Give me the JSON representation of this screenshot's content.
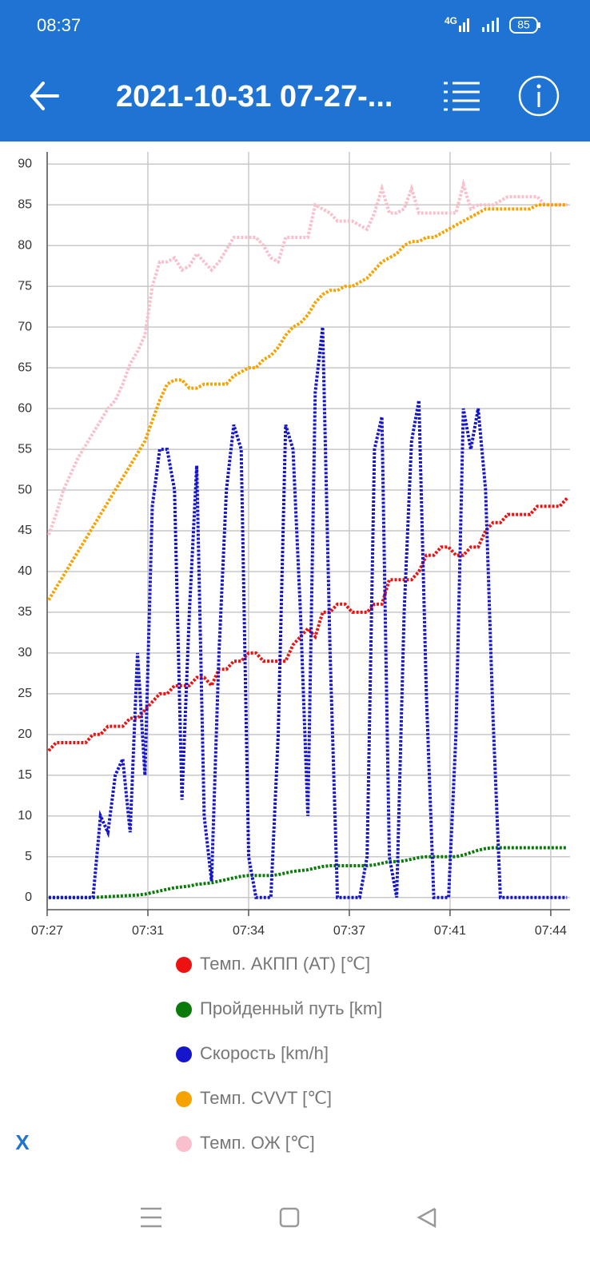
{
  "status_bar": {
    "time": "08:37",
    "network": "4G",
    "battery": "85"
  },
  "app_bar": {
    "title": "2021-10-31 07-27-..."
  },
  "close_button": "X",
  "chart_data": {
    "type": "line",
    "x": [
      447.75,
      448,
      448.25,
      448.5,
      448.75,
      449,
      449.25,
      449.5,
      449.75,
      450,
      450.25,
      450.5,
      450.75,
      451,
      451.25,
      451.5,
      451.75,
      452,
      452.25,
      452.5,
      452.75,
      453,
      453.25,
      453.5,
      453.75,
      454,
      454.25,
      454.5,
      454.75,
      455,
      455.25,
      455.5,
      455.75,
      456,
      456.25,
      456.5,
      456.75,
      457,
      457.25,
      457.5,
      457.75,
      458,
      458.25,
      458.5,
      458.75,
      459,
      459.25,
      459.5,
      459.75,
      460,
      460.25,
      460.5,
      460.75,
      461,
      461.25,
      461.5,
      461.75,
      462,
      462.25,
      462.5,
      462.75,
      463,
      463.25,
      463.5,
      463.75,
      464,
      464.25,
      464.5,
      464.75,
      465,
      465.25
    ],
    "xlim": [
      447.7,
      465.35
    ],
    "xticks": [
      {
        "value": 447.7,
        "label": "07:27"
      },
      {
        "value": 451.1,
        "label": "07:31"
      },
      {
        "value": 454.5,
        "label": "07:34"
      },
      {
        "value": 457.9,
        "label": "07:37"
      },
      {
        "value": 461.3,
        "label": "07:41"
      },
      {
        "value": 464.7,
        "label": "07:44"
      }
    ],
    "ylim": [
      -1.5,
      91.5
    ],
    "yticks": [
      0,
      5,
      10,
      15,
      20,
      25,
      30,
      35,
      40,
      45,
      50,
      55,
      60,
      65,
      70,
      75,
      80,
      85,
      90
    ],
    "grid": true,
    "series": [
      {
        "name": "Темп. АКПП (AT) [℃]",
        "color": "#ee1111",
        "values": [
          18,
          19,
          19,
          19,
          19,
          19,
          20,
          20,
          21,
          21,
          21,
          22,
          22,
          23,
          24,
          25,
          25,
          26,
          26,
          26,
          27,
          27,
          26,
          28,
          28,
          29,
          29,
          30,
          30,
          29,
          29,
          29,
          29,
          31,
          32,
          33,
          32,
          35,
          35,
          36,
          36,
          35,
          35,
          35,
          36,
          36,
          39,
          39,
          39,
          39,
          40,
          42,
          42,
          43,
          43,
          42,
          42,
          43,
          43,
          45,
          46,
          46,
          47,
          47,
          47,
          47,
          48,
          48,
          48,
          48,
          49
        ]
      },
      {
        "name": "Пройденный путь [km]",
        "color": "#0a7a0a",
        "values": [
          0,
          0,
          0,
          0,
          0,
          0,
          0,
          0.05,
          0.1,
          0.15,
          0.2,
          0.25,
          0.3,
          0.4,
          0.6,
          0.8,
          1.0,
          1.2,
          1.3,
          1.4,
          1.6,
          1.7,
          1.8,
          2.0,
          2.2,
          2.4,
          2.6,
          2.7,
          2.7,
          2.7,
          2.7,
          2.8,
          3.0,
          3.2,
          3.3,
          3.4,
          3.6,
          3.8,
          3.9,
          3.9,
          3.9,
          3.9,
          3.9,
          3.9,
          4.0,
          4.2,
          4.4,
          4.4,
          4.5,
          4.7,
          4.9,
          5.0,
          5.0,
          5.0,
          5.0,
          5.0,
          5.2,
          5.5,
          5.8,
          6.0,
          6.1,
          6.1,
          6.1,
          6.1,
          6.1,
          6.1,
          6.1,
          6.1,
          6.1,
          6.1,
          6.1
        ]
      },
      {
        "name": "Скорость [km/h]",
        "color": "#1515cc",
        "values": [
          0,
          0,
          0,
          0,
          0,
          0,
          0,
          10,
          8,
          15,
          17,
          8,
          30,
          15,
          48,
          55,
          55,
          50,
          12,
          35,
          53,
          10,
          2,
          30,
          50,
          58,
          55,
          5,
          0,
          0,
          0,
          20,
          58,
          55,
          35,
          10,
          62,
          70,
          30,
          0,
          0,
          0,
          0,
          5,
          55,
          59,
          5,
          0,
          35,
          56,
          61,
          25,
          0,
          0,
          0,
          20,
          60,
          55,
          60,
          50,
          22,
          0,
          0,
          0,
          0,
          0,
          0,
          0,
          0,
          0,
          0
        ]
      },
      {
        "name": "Темп. CVVT [℃]",
        "color": "#f5a300",
        "values": [
          36.5,
          38,
          39.5,
          41,
          42.5,
          44,
          45.5,
          47,
          48.5,
          50,
          51.5,
          53,
          54.5,
          56,
          58.5,
          61,
          63,
          63.5,
          63.5,
          62.5,
          62.5,
          63,
          63,
          63,
          63,
          64,
          64.5,
          65,
          65,
          66,
          66.5,
          67.5,
          69,
          70,
          70.5,
          71.5,
          73,
          74,
          74.5,
          74.5,
          75,
          75,
          75.5,
          76,
          77,
          78,
          78.5,
          79,
          80,
          80.5,
          80.5,
          81,
          81,
          81.5,
          82,
          82.5,
          83,
          83.5,
          84,
          84.5,
          84.5,
          84.5,
          84.5,
          84.5,
          84.5,
          84.5,
          85,
          85,
          85,
          85,
          85
        ]
      },
      {
        "name": "Темп. ОЖ [℃]",
        "color": "#f9c0cc",
        "values": [
          44.5,
          47,
          50,
          52,
          54,
          55.5,
          57,
          58.5,
          60,
          61,
          63,
          65.5,
          67,
          69,
          75,
          78,
          78,
          78.5,
          77,
          77.5,
          79,
          78,
          77,
          78,
          79.5,
          81,
          81,
          81,
          81,
          80,
          78.5,
          78,
          81,
          81,
          81,
          81,
          85,
          84.5,
          84,
          83,
          83,
          83,
          82.5,
          82,
          84,
          87,
          84,
          84,
          84.5,
          87,
          84,
          84,
          84,
          84,
          84,
          84,
          87.5,
          84.5,
          85,
          85,
          85,
          85.5,
          86,
          86,
          86,
          86,
          86,
          85,
          85,
          85,
          85
        ]
      }
    ]
  }
}
